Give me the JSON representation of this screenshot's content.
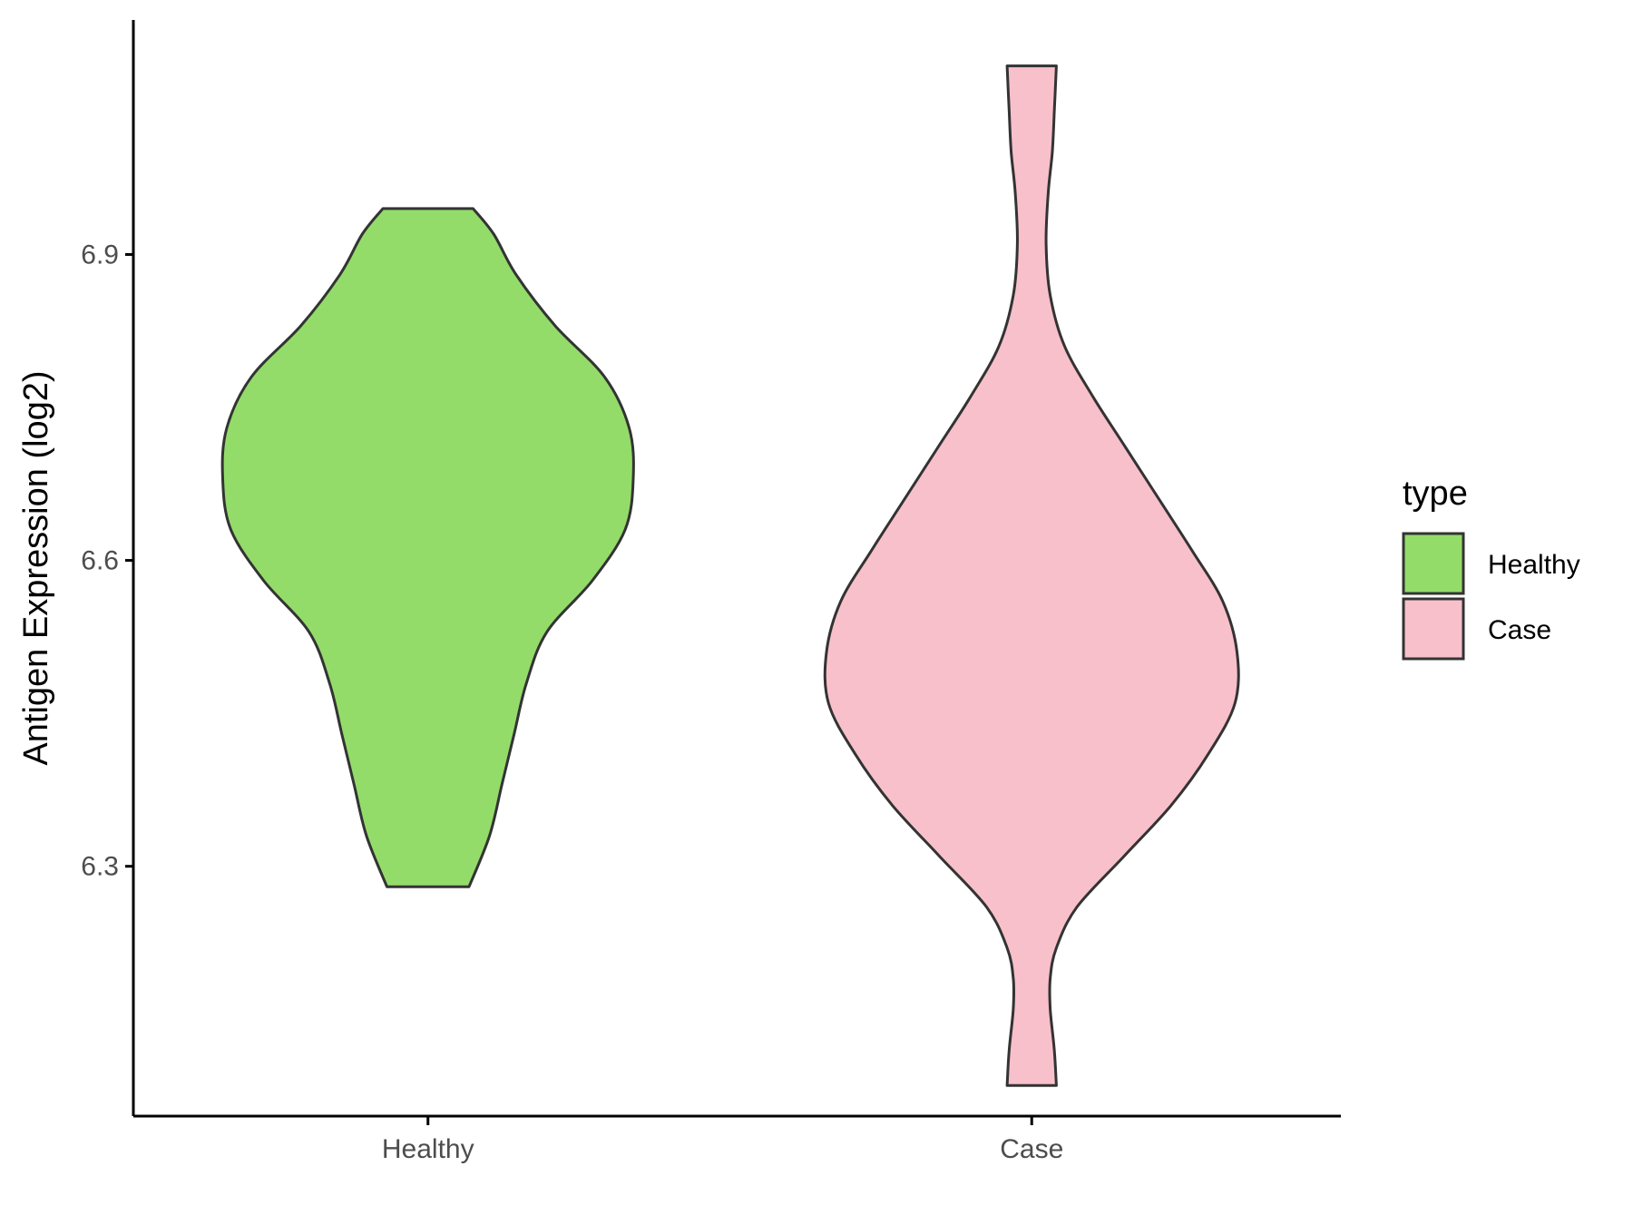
{
  "chart_data": {
    "type": "violin",
    "title": "",
    "xlabel": "",
    "ylabel": "Antigen Expression (log2)",
    "ylim": [
      6.055,
      7.13
    ],
    "yticks": [
      6.3,
      6.6,
      6.9
    ],
    "ytick_labels": [
      "6.3",
      "6.6",
      "6.9"
    ],
    "categories": [
      "Healthy",
      "Case"
    ],
    "legend": {
      "title": "type",
      "position": "right",
      "entries": [
        {
          "label": "Healthy",
          "color": "#93dc6a"
        },
        {
          "label": "Case",
          "color": "#f8c0cb"
        }
      ]
    },
    "grid": false,
    "series": [
      {
        "name": "Healthy",
        "color": "#93dc6a",
        "min": 6.28,
        "max": 6.945,
        "profile": [
          [
            6.28,
            0.2
          ],
          [
            6.33,
            0.3
          ],
          [
            6.38,
            0.36
          ],
          [
            6.43,
            0.42
          ],
          [
            6.48,
            0.48
          ],
          [
            6.53,
            0.58
          ],
          [
            6.58,
            0.8
          ],
          [
            6.63,
            0.96
          ],
          [
            6.68,
            1.0
          ],
          [
            6.73,
            0.98
          ],
          [
            6.78,
            0.86
          ],
          [
            6.83,
            0.62
          ],
          [
            6.88,
            0.43
          ],
          [
            6.92,
            0.32
          ],
          [
            6.945,
            0.22
          ]
        ]
      },
      {
        "name": "Case",
        "color": "#f8c0cb",
        "min": 6.085,
        "max": 7.085,
        "profile": [
          [
            6.085,
            0.12
          ],
          [
            6.12,
            0.11
          ],
          [
            6.16,
            0.09
          ],
          [
            6.19,
            0.09
          ],
          [
            6.22,
            0.12
          ],
          [
            6.26,
            0.22
          ],
          [
            6.31,
            0.45
          ],
          [
            6.36,
            0.68
          ],
          [
            6.41,
            0.86
          ],
          [
            6.46,
            0.99
          ],
          [
            6.51,
            1.0
          ],
          [
            6.56,
            0.93
          ],
          [
            6.61,
            0.78
          ],
          [
            6.66,
            0.62
          ],
          [
            6.71,
            0.46
          ],
          [
            6.76,
            0.3
          ],
          [
            6.81,
            0.16
          ],
          [
            6.86,
            0.09
          ],
          [
            6.91,
            0.07
          ],
          [
            6.96,
            0.08
          ],
          [
            7.0,
            0.1
          ],
          [
            7.04,
            0.11
          ],
          [
            7.085,
            0.12
          ]
        ]
      }
    ]
  }
}
